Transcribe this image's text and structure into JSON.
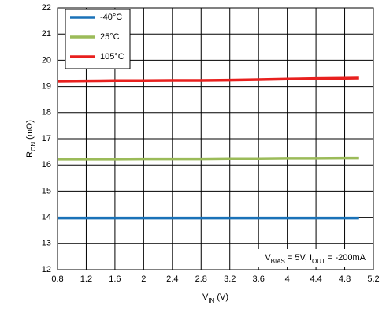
{
  "chart_data": {
    "type": "line",
    "ylabel": [
      {
        "text": "R"
      },
      {
        "text": "ON",
        "sub": true
      },
      {
        "text": " (mΩ)"
      }
    ],
    "xlabel": [
      {
        "text": "V"
      },
      {
        "text": "IN",
        "sub": true
      },
      {
        "text": " (V)"
      }
    ],
    "annotation": [
      {
        "text": "V"
      },
      {
        "text": "BIAS",
        "sub": true
      },
      {
        "text": " = 5V, I"
      },
      {
        "text": "OUT",
        "sub": true
      },
      {
        "text": " = -200mA"
      }
    ],
    "x": [
      0.8,
      1.2,
      1.6,
      2.0,
      2.4,
      2.8,
      3.2,
      3.6,
      4.0,
      4.4,
      4.8,
      5.0
    ],
    "series": [
      {
        "name": "-40°C",
        "color": "#1a72b8",
        "values": [
          13.97,
          13.97,
          13.97,
          13.97,
          13.97,
          13.97,
          13.97,
          13.97,
          13.97,
          13.97,
          13.97,
          13.97
        ]
      },
      {
        "name": "25°C",
        "color": "#9bbb59",
        "values": [
          16.22,
          16.22,
          16.22,
          16.23,
          16.23,
          16.23,
          16.24,
          16.24,
          16.25,
          16.25,
          16.26,
          16.26
        ]
      },
      {
        "name": "105°C",
        "color": "#e8201e",
        "values": [
          19.2,
          19.21,
          19.22,
          19.22,
          19.23,
          19.23,
          19.24,
          19.26,
          19.28,
          19.3,
          19.31,
          19.32
        ]
      }
    ],
    "xlim": [
      0.8,
      5.2
    ],
    "xticks": [
      0.8,
      1.2,
      1.6,
      2,
      2.4,
      2.8,
      3.2,
      3.6,
      4,
      4.4,
      4.8,
      5.2
    ],
    "ylim": [
      12,
      22
    ],
    "yticks": [
      12,
      13,
      14,
      15,
      16,
      17,
      18,
      19,
      20,
      21,
      22
    ],
    "grid": true,
    "legend": "upper-left"
  }
}
